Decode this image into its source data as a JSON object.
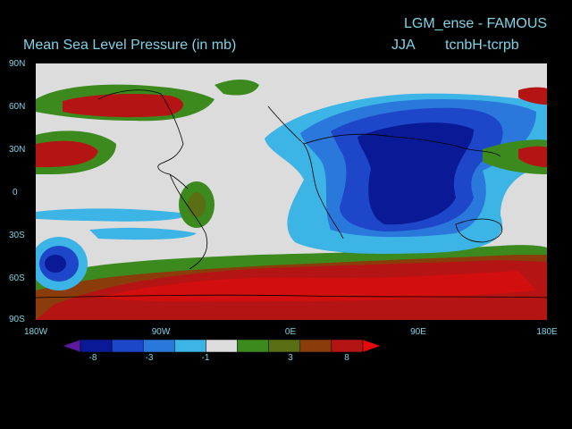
{
  "header": {
    "top_title": "LGM_ense - FAMOUS",
    "main_title": "Mean Sea Level Pressure (in mb)",
    "season": "JJA",
    "experiment": "tcnbH-tcrpb"
  },
  "axes": {
    "lat_labels": [
      "90N",
      "60N",
      "30N",
      "0",
      "30S",
      "60S",
      "90S"
    ],
    "lon_labels": [
      "180W",
      "90W",
      "0E",
      "90E",
      "180E"
    ]
  },
  "colorbar": {
    "labels": [
      "-8",
      "-3",
      "-1",
      "3",
      "8"
    ],
    "colors": [
      "#5a1aa0",
      "#0a1a96",
      "#1e46c8",
      "#2a78dc",
      "#3cb4e6",
      "#dcdcdc",
      "#3c8a1e",
      "#5a6e14",
      "#8a3c0a",
      "#b41414",
      "#e60a0a"
    ]
  }
}
